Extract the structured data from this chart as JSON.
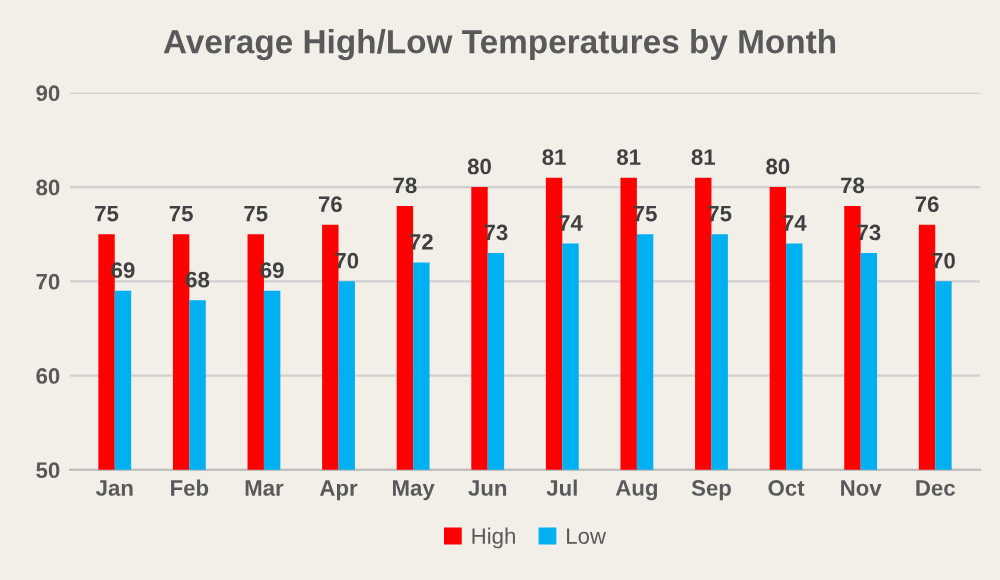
{
  "chart_data": {
    "type": "bar",
    "title": "Average High/Low Temperatures by Month",
    "categories": [
      "Jan",
      "Feb",
      "Mar",
      "Apr",
      "May",
      "Jun",
      "Jul",
      "Aug",
      "Sep",
      "Oct",
      "Nov",
      "Dec"
    ],
    "series": [
      {
        "name": "High",
        "color": "#ff0000",
        "values": [
          75,
          75,
          75,
          76,
          78,
          80,
          81,
          81,
          81,
          80,
          78,
          76
        ]
      },
      {
        "name": "Low",
        "color": "#00b0f0",
        "values": [
          69,
          68,
          69,
          70,
          72,
          73,
          74,
          75,
          75,
          74,
          73,
          70
        ]
      }
    ],
    "ylim": [
      50,
      90
    ],
    "yticks": [
      50,
      60,
      70,
      80,
      90
    ],
    "grid": "y",
    "legend": "bottom",
    "data_labels": true
  }
}
